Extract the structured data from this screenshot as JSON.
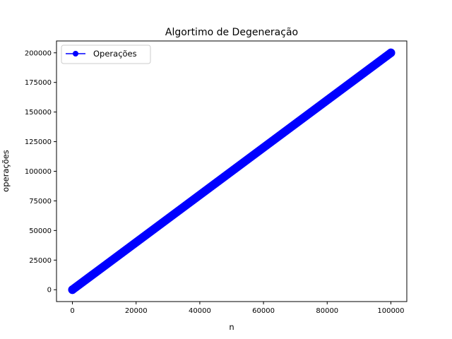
{
  "chart_data": {
    "type": "line",
    "title": "Algortimo de Degeneração",
    "xlabel": "n",
    "ylabel": "operações",
    "xlim": [
      -5000,
      105000
    ],
    "ylim": [
      -10000,
      210000
    ],
    "xticks": [
      0,
      20000,
      40000,
      60000,
      80000,
      100000
    ],
    "yticks": [
      0,
      25000,
      50000,
      75000,
      100000,
      125000,
      150000,
      175000,
      200000
    ],
    "xtick_labels": [
      "0",
      "20000",
      "40000",
      "60000",
      "80000",
      "100000"
    ],
    "ytick_labels": [
      "0",
      "25000",
      "50000",
      "75000",
      "100000",
      "125000",
      "150000",
      "175000",
      "200000"
    ],
    "grid": false,
    "legend_position": "top-left",
    "series": [
      {
        "name": "Operações",
        "color": "#0000ff",
        "marker": "circle",
        "x": [
          0,
          100000
        ],
        "y": [
          0,
          200000
        ]
      }
    ]
  }
}
